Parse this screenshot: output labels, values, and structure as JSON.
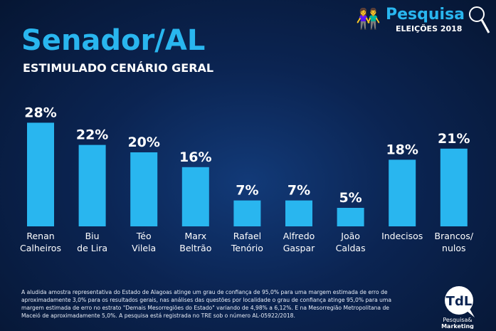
{
  "header": {
    "title": "Senador/AL",
    "subtitle": "ESTIMULADO CENÁRIO GERAL"
  },
  "brand": {
    "name": "Pesquisa",
    "tagline": "ELEIÇÕES 2018",
    "logo_text": "TdL",
    "logo_sub1": "Pesquisa&",
    "logo_sub2": "Marketing"
  },
  "chart_data": {
    "type": "bar",
    "title": "Senador/AL",
    "subtitle": "ESTIMULADO CENÁRIO GERAL",
    "categories": [
      [
        "Renan",
        "Calheiros"
      ],
      [
        "Biu",
        "de Lira"
      ],
      [
        "Téo",
        "Vilela"
      ],
      [
        "Marx",
        "Beltrão"
      ],
      [
        "Rafael",
        "Tenório"
      ],
      [
        "Alfredo",
        "Gaspar"
      ],
      [
        "João",
        "Caldas"
      ],
      [
        "Indecisos",
        ""
      ],
      [
        "Brancos/",
        "nulos"
      ]
    ],
    "values": [
      28,
      22,
      20,
      16,
      7,
      7,
      5,
      18,
      21
    ],
    "labels": [
      "28%",
      "22%",
      "20%",
      "16%",
      "7%",
      "7%",
      "5%",
      "18%",
      "21%"
    ],
    "unit": "%",
    "ylim": [
      0,
      30
    ],
    "color": "#29b6ef"
  },
  "footnote": "A aludida  amostra representativa do Estado de Alagoas  atinge um grau de confiança de 95,0% para uma margem estimada de erro de aproximadamente 3,0% para os resultados gerais, nas análises das questões por localidade o grau de confiança atinge 95,0% para uma margem estimada de erro no estrato \"Demais Mesorregiões do Estado\" variando de  4,98%  a 6,12%. E  na Mesorregião Metropolitana de Maceió  de aproximadamente 5,0%. A pesquisa está registrada no TRE sob o número AL-05922/2018."
}
